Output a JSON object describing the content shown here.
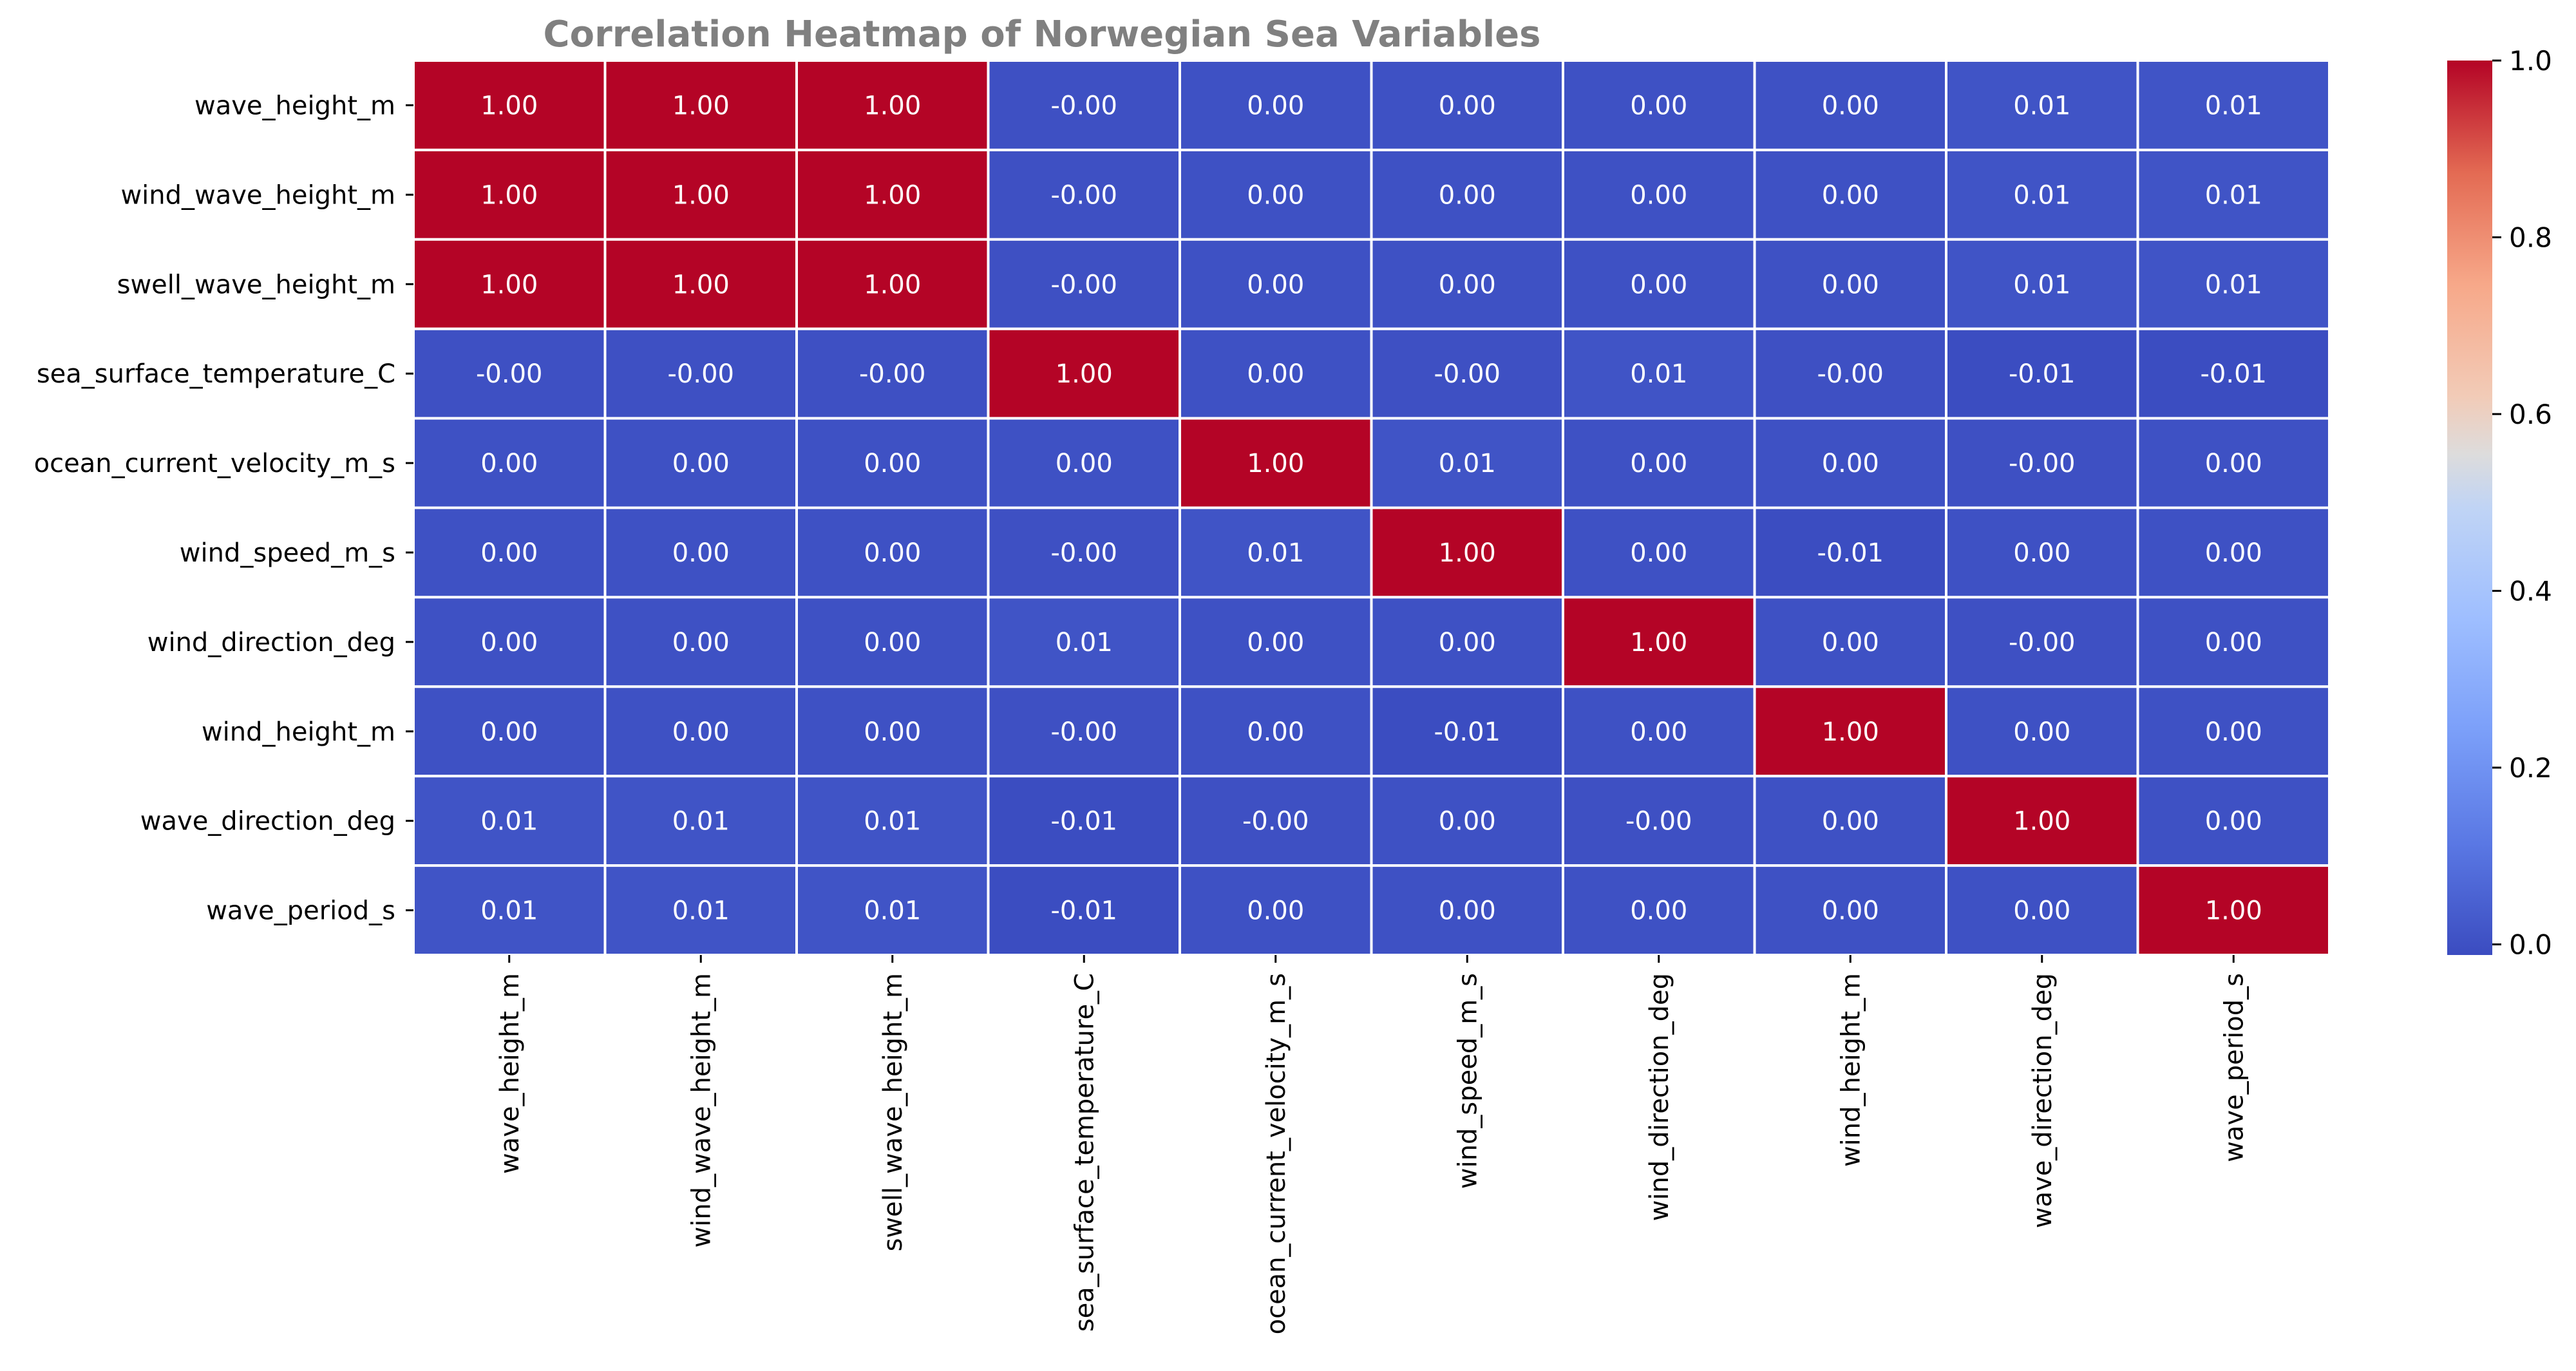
{
  "chart_data": {
    "type": "heatmap",
    "title": "Correlation Heatmap of Norwegian Sea Variables",
    "variables": [
      "wave_height_m",
      "wind_wave_height_m",
      "swell_wave_height_m",
      "sea_surface_temperature_C",
      "ocean_current_velocity_m_s",
      "wind_speed_m_s",
      "wind_direction_deg",
      "wind_height_m",
      "wave_direction_deg",
      "wave_period_s"
    ],
    "values": [
      [
        1.0,
        1.0,
        1.0,
        -0.001,
        0.001,
        0.001,
        0.001,
        0.001,
        0.01,
        0.01
      ],
      [
        1.0,
        1.0,
        1.0,
        -0.001,
        0.001,
        0.001,
        0.001,
        0.001,
        0.01,
        0.01
      ],
      [
        1.0,
        1.0,
        1.0,
        -0.001,
        0.001,
        0.001,
        0.001,
        0.001,
        0.01,
        0.01
      ],
      [
        -0.001,
        -0.001,
        -0.001,
        1.0,
        0.001,
        -0.001,
        0.01,
        -0.001,
        -0.01,
        -0.01
      ],
      [
        0.001,
        0.001,
        0.001,
        0.001,
        1.0,
        0.01,
        0.001,
        0.001,
        -0.001,
        0.001
      ],
      [
        0.001,
        0.001,
        0.001,
        -0.001,
        0.01,
        1.0,
        0.001,
        -0.01,
        0.001,
        0.001
      ],
      [
        0.001,
        0.001,
        0.001,
        0.01,
        0.001,
        0.001,
        1.0,
        0.001,
        -0.001,
        0.001
      ],
      [
        0.001,
        0.001,
        0.001,
        -0.001,
        0.001,
        -0.01,
        0.001,
        1.0,
        0.001,
        0.001
      ],
      [
        0.01,
        0.01,
        0.01,
        -0.01,
        -0.001,
        0.001,
        -0.001,
        0.001,
        1.0,
        0.001
      ],
      [
        0.01,
        0.01,
        0.01,
        -0.01,
        0.001,
        0.001,
        0.001,
        0.001,
        0.001,
        1.0
      ]
    ],
    "labels": [
      [
        "1.00",
        "1.00",
        "1.00",
        "-0.00",
        "0.00",
        "0.00",
        "0.00",
        "0.00",
        "0.01",
        "0.01"
      ],
      [
        "1.00",
        "1.00",
        "1.00",
        "-0.00",
        "0.00",
        "0.00",
        "0.00",
        "0.00",
        "0.01",
        "0.01"
      ],
      [
        "1.00",
        "1.00",
        "1.00",
        "-0.00",
        "0.00",
        "0.00",
        "0.00",
        "0.00",
        "0.01",
        "0.01"
      ],
      [
        "-0.00",
        "-0.00",
        "-0.00",
        "1.00",
        "0.00",
        "-0.00",
        "0.01",
        "-0.00",
        "-0.01",
        "-0.01"
      ],
      [
        "0.00",
        "0.00",
        "0.00",
        "0.00",
        "1.00",
        "0.01",
        "0.00",
        "0.00",
        "-0.00",
        "0.00"
      ],
      [
        "0.00",
        "0.00",
        "0.00",
        "-0.00",
        "0.01",
        "1.00",
        "0.00",
        "-0.01",
        "0.00",
        "0.00"
      ],
      [
        "0.00",
        "0.00",
        "0.00",
        "0.01",
        "0.00",
        "0.00",
        "1.00",
        "0.00",
        "-0.00",
        "0.00"
      ],
      [
        "0.00",
        "0.00",
        "0.00",
        "-0.00",
        "0.00",
        "-0.01",
        "0.00",
        "1.00",
        "0.00",
        "0.00"
      ],
      [
        "0.01",
        "0.01",
        "0.01",
        "-0.01",
        "-0.00",
        "0.00",
        "-0.00",
        "0.00",
        "1.00",
        "0.00"
      ],
      [
        "0.01",
        "0.01",
        "0.01",
        "-0.01",
        "0.00",
        "0.00",
        "0.00",
        "0.00",
        "0.00",
        "1.00"
      ]
    ],
    "colormap": "coolwarm",
    "colorbar": {
      "min": -0.012,
      "max": 1.0,
      "ticks": [
        0.0,
        0.2,
        0.4,
        0.6,
        0.8,
        1.0
      ],
      "tick_labels": [
        "0.0",
        "0.2",
        "0.4",
        "0.6",
        "0.8",
        "1.0"
      ]
    },
    "grid": true,
    "grid_color": "#ffffff"
  }
}
